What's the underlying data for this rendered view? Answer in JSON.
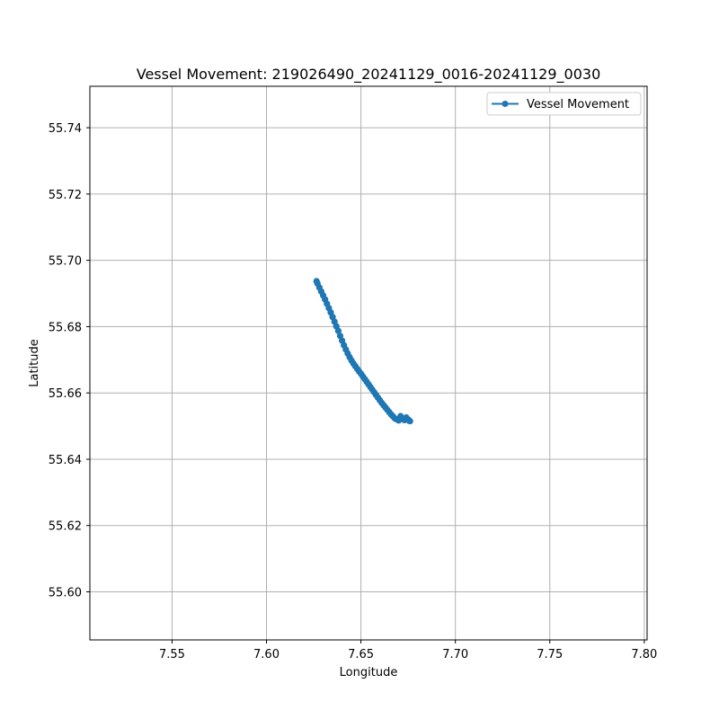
{
  "chart_data": {
    "type": "line",
    "title": "Vessel Movement: 219026490_20241129_0016-20241129_0030",
    "xlabel": "Longitude",
    "ylabel": "Latitude",
    "xlim": [
      7.5065,
      7.8015
    ],
    "ylim": [
      55.5855,
      55.7525
    ],
    "xticks": [
      7.55,
      7.6,
      7.65,
      7.7,
      7.75,
      7.8
    ],
    "xtick_labels": [
      "7.55",
      "7.60",
      "7.65",
      "7.70",
      "7.75",
      "7.80"
    ],
    "yticks": [
      55.6,
      55.62,
      55.64,
      55.66,
      55.68,
      55.7,
      55.72,
      55.74
    ],
    "ytick_labels": [
      "55.60",
      "55.62",
      "55.64",
      "55.66",
      "55.68",
      "55.70",
      "55.72",
      "55.74"
    ],
    "grid": true,
    "legend_position": "top-right",
    "series": [
      {
        "name": "Vessel Movement",
        "color": "#1f77b4",
        "marker": "circle",
        "x": [
          7.6265,
          7.627,
          7.628,
          7.629,
          7.63,
          7.631,
          7.632,
          7.633,
          7.634,
          7.635,
          7.636,
          7.637,
          7.638,
          7.639,
          7.64,
          7.641,
          7.642,
          7.643,
          7.644,
          7.645,
          7.646,
          7.647,
          7.648,
          7.649,
          7.65,
          7.651,
          7.652,
          7.653,
          7.654,
          7.655,
          7.656,
          7.657,
          7.658,
          7.659,
          7.66,
          7.661,
          7.662,
          7.663,
          7.664,
          7.665,
          7.666,
          7.667,
          7.668,
          7.669,
          7.67,
          7.671,
          7.672,
          7.673,
          7.674,
          7.675,
          7.6755,
          7.676
        ],
        "y": [
          55.6937,
          55.693,
          55.6918,
          55.6906,
          55.6894,
          55.6882,
          55.6869,
          55.6856,
          55.6843,
          55.6829,
          55.6815,
          55.6801,
          55.6787,
          55.6772,
          55.6758,
          55.6744,
          55.6731,
          55.6719,
          55.6708,
          55.6698,
          55.6689,
          55.6681,
          55.6673,
          55.6665,
          55.6658,
          55.665,
          55.6642,
          55.6634,
          55.6626,
          55.6618,
          55.661,
          55.6602,
          55.6594,
          55.6586,
          55.6578,
          55.657,
          55.6563,
          55.6556,
          55.6549,
          55.6542,
          55.6535,
          55.6529,
          55.6523,
          55.652,
          55.6517,
          55.653,
          55.6522,
          55.6518,
          55.6526,
          55.652,
          55.6516,
          55.6515
        ]
      }
    ]
  }
}
